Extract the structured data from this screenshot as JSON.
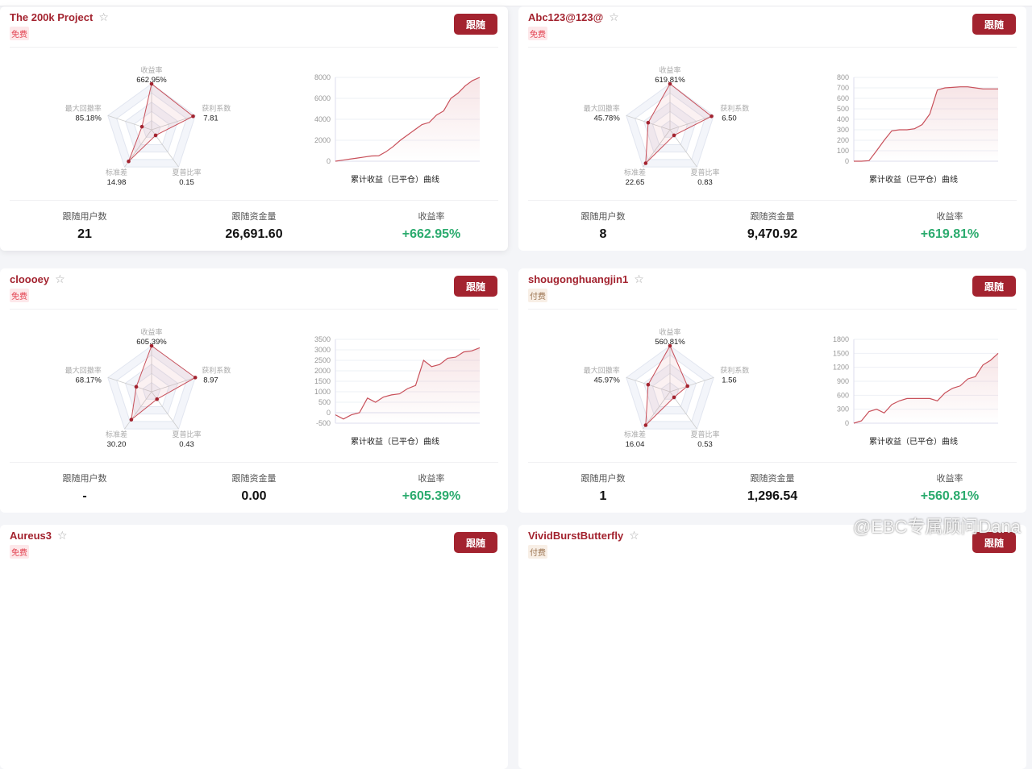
{
  "radar_axes": [
    "收益率",
    "获利系数",
    "夏普比率",
    "标准差",
    "最大回撤率"
  ],
  "chart_caption": "累计收益（已平仓）曲线",
  "follow_label": "跟随",
  "stat_labels": {
    "users": "跟随用户数",
    "funds": "跟随资金量",
    "return": "收益率"
  },
  "accent": "#a3232f",
  "cards": [
    {
      "name": "The 200k Project",
      "tag": "免费",
      "tag_type": "free",
      "radar_values": [
        "662.95%",
        "7.81",
        "0.15",
        "14.98",
        "85.18%"
      ],
      "radar_levels": [
        1.0,
        0.95,
        0.15,
        0.85,
        0.22
      ],
      "line": {
        "yticks": [
          0,
          2000,
          4000,
          6000,
          8000
        ],
        "ymin": 0,
        "ymax": 8000,
        "values": [
          0,
          100,
          200,
          300,
          400,
          500,
          520,
          900,
          1400,
          2000,
          2500,
          3000,
          3500,
          3700,
          4400,
          4800,
          6000,
          6500,
          7200,
          7700,
          8000
        ]
      },
      "users": "21",
      "funds": "26,691.60",
      "return": "+662.95%"
    },
    {
      "name": "Abc123@123@",
      "tag": "免费",
      "tag_type": "free",
      "radar_values": [
        "619.81%",
        "6.50",
        "0.83",
        "22.65",
        "45.78%"
      ],
      "radar_levels": [
        1.0,
        0.95,
        0.15,
        0.9,
        0.5
      ],
      "line": {
        "yticks": [
          0,
          100,
          200,
          300,
          400,
          500,
          600,
          700,
          800
        ],
        "ymin": 0,
        "ymax": 800,
        "values": [
          0,
          0,
          5,
          100,
          200,
          290,
          300,
          300,
          310,
          350,
          450,
          680,
          700,
          705,
          710,
          710,
          700,
          690,
          690,
          690
        ]
      },
      "users": "8",
      "funds": "9,470.92",
      "return": "+619.81%"
    },
    {
      "name": "cloooey",
      "tag": "免费",
      "tag_type": "free",
      "radar_values": [
        "605.39%",
        "8.97",
        "0.43",
        "30.20",
        "68.17%"
      ],
      "radar_levels": [
        1.0,
        1.0,
        0.2,
        0.75,
        0.35
      ],
      "line": {
        "yticks": [
          -500,
          0,
          500,
          1000,
          1500,
          2000,
          2500,
          3000,
          3500
        ],
        "ymin": -500,
        "ymax": 3500,
        "values": [
          -100,
          -300,
          -100,
          0,
          700,
          500,
          750,
          850,
          900,
          1150,
          1300,
          2500,
          2200,
          2300,
          2600,
          2650,
          2900,
          2950,
          3100
        ]
      },
      "users": "-",
      "funds": "0.00",
      "return": "+605.39%"
    },
    {
      "name": "shougonghuangjin1",
      "tag": "付费",
      "tag_type": "paid",
      "radar_values": [
        "560.81%",
        "1.56",
        "0.53",
        "16.04",
        "45.97%"
      ],
      "radar_levels": [
        1.0,
        0.4,
        0.15,
        0.9,
        0.5
      ],
      "line": {
        "yticks": [
          0,
          300,
          600,
          900,
          1200,
          1500,
          1800
        ],
        "ymin": 0,
        "ymax": 1800,
        "values": [
          0,
          50,
          250,
          300,
          220,
          400,
          480,
          530,
          530,
          530,
          530,
          480,
          650,
          750,
          800,
          950,
          1000,
          1250,
          1350,
          1500
        ]
      },
      "users": "1",
      "funds": "1,296.54",
      "return": "+560.81%"
    },
    {
      "name": "Aureus3",
      "tag": "免费",
      "tag_type": "free"
    },
    {
      "name": "VividBurstButterfly",
      "tag": "付费",
      "tag_type": "paid"
    }
  ],
  "watermark": "@EBC专属顾问Dana"
}
